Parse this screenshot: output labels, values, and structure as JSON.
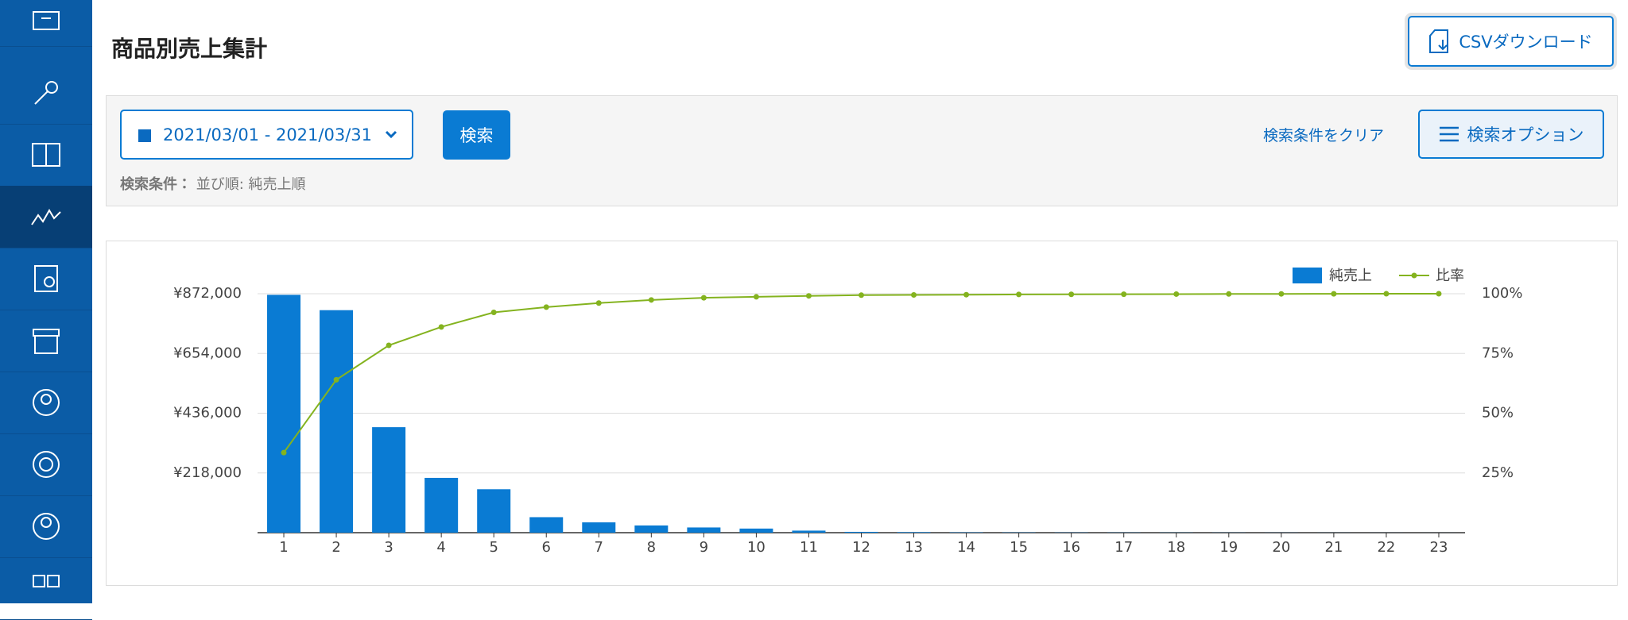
{
  "header": {
    "title": "商品別売上集計",
    "csv_button": "CSVダウンロード"
  },
  "search": {
    "date_range": "2021/03/01 - 2021/03/31",
    "search_button": "検索",
    "clear_link": "検索条件をクリア",
    "options_button": "検索オプション",
    "condition_label": "検索条件：",
    "condition_value": "並び順: 純売上順"
  },
  "chart_data": {
    "type": "bar_line",
    "categories": [
      "1",
      "2",
      "3",
      "4",
      "5",
      "6",
      "7",
      "8",
      "9",
      "10",
      "11",
      "12",
      "13",
      "14",
      "15",
      "16",
      "17",
      "18",
      "19",
      "20",
      "21",
      "22",
      "23"
    ],
    "series": [
      {
        "name": "純売上",
        "color": "#0a7bd3",
        "type": "bar",
        "values": [
          868000,
          812000,
          385000,
          200000,
          158500,
          56600,
          37700,
          26400,
          19000,
          15000,
          7500,
          3000,
          2000,
          1200,
          900,
          700,
          600,
          500,
          400,
          300,
          200,
          150,
          100
        ]
      },
      {
        "name": "比率",
        "color": "#84b31f",
        "type": "line",
        "axis": "y2",
        "values": [
          33.5,
          64.0,
          78.4,
          86.1,
          92.2,
          94.4,
          96.1,
          97.4,
          98.3,
          98.7,
          99.1,
          99.4,
          99.5,
          99.6,
          99.7,
          99.75,
          99.8,
          99.85,
          99.9,
          99.93,
          99.96,
          99.98,
          100
        ]
      }
    ],
    "ylim": [
      0,
      872000
    ],
    "yticks": [
      {
        "value": 218000,
        "label": "¥218,000"
      },
      {
        "value": 436000,
        "label": "¥436,000"
      },
      {
        "value": 654000,
        "label": "¥654,000"
      },
      {
        "value": 872000,
        "label": "¥872,000"
      }
    ],
    "y2lim": [
      0,
      100
    ],
    "y2ticks": [
      {
        "value": 25,
        "label": "25%"
      },
      {
        "value": 50,
        "label": "50%"
      },
      {
        "value": 75,
        "label": "75%"
      },
      {
        "value": 100,
        "label": "100%"
      }
    ],
    "grid": true,
    "legend": "top-right"
  }
}
